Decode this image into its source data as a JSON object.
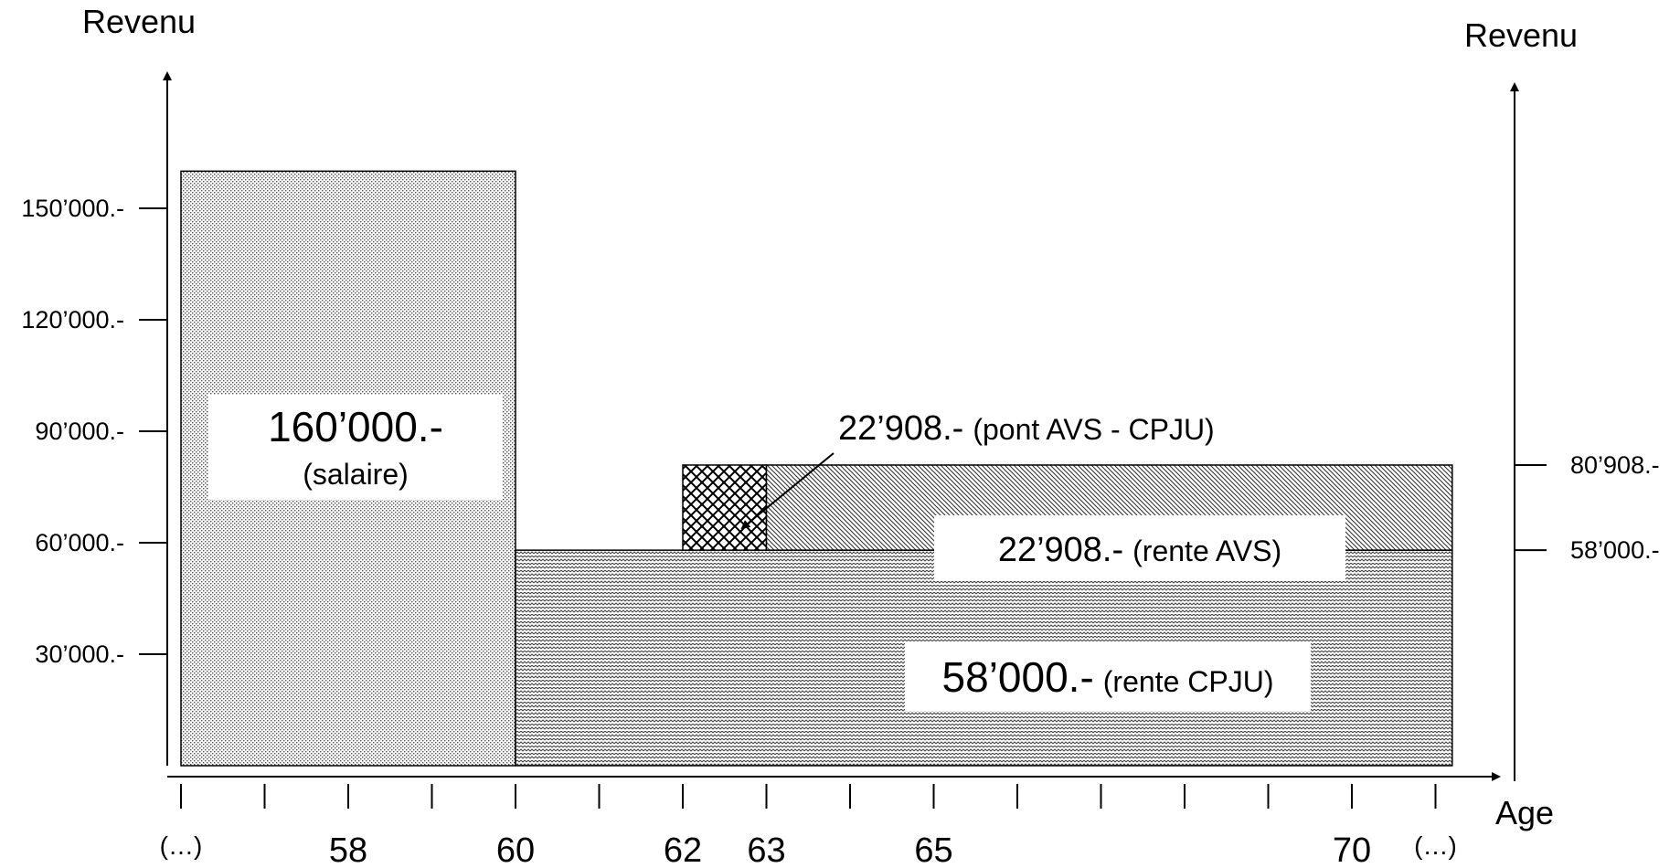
{
  "left_axis": {
    "title": "Revenu",
    "ticks": [
      {
        "value": 150000,
        "label": "150’000.-"
      },
      {
        "value": 120000,
        "label": "120’000.-"
      },
      {
        "value": 90000,
        "label": "90’000.-"
      },
      {
        "value": 60000,
        "label": "60’000.-"
      },
      {
        "value": 30000,
        "label": "30’000.-"
      }
    ]
  },
  "right_axis": {
    "title": "Revenu",
    "ticks": [
      {
        "value": 80908,
        "label": "80’908.-"
      },
      {
        "value": 58000,
        "label": "58’000.-"
      }
    ]
  },
  "x_axis": {
    "title": "Age",
    "labels": [
      {
        "age": 56,
        "label": "(…)"
      },
      {
        "age": 58,
        "label": "58"
      },
      {
        "age": 60,
        "label": "60"
      },
      {
        "age": 62,
        "label": "62"
      },
      {
        "age": 63,
        "label": "63"
      },
      {
        "age": 65,
        "label": "65"
      },
      {
        "age": 70,
        "label": "70"
      },
      {
        "age": 71,
        "label": "(…)"
      }
    ]
  },
  "blocks": {
    "salaire": {
      "from_age": 56,
      "to_age": 60,
      "bottom": 0,
      "top": 160000,
      "amount": "160’000.-",
      "note": "(salaire)"
    },
    "rente_cpju": {
      "from_age": 60,
      "to_age": 71.2,
      "bottom": 0,
      "top": 58000,
      "amount": "58’000.-",
      "note": "(rente CPJU)"
    },
    "pont_avs": {
      "from_age": 62,
      "to_age": 63,
      "bottom": 58000,
      "top": 80908,
      "amount": "22’908.-",
      "note": "(pont AVS - CPJU)"
    },
    "rente_avs": {
      "from_age": 63,
      "to_age": 71.2,
      "bottom": 58000,
      "top": 80908,
      "amount": "22’908.-",
      "note": "(rente AVS)"
    }
  }
}
